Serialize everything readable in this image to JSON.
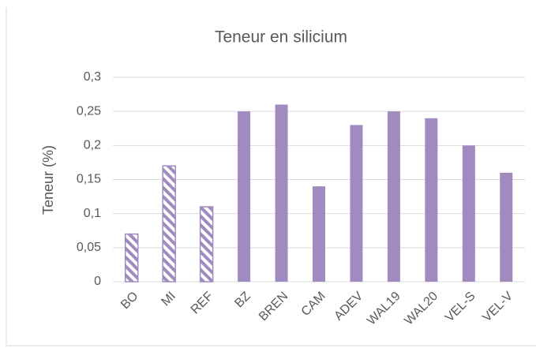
{
  "chart_data": {
    "type": "bar",
    "title": "Teneur en silicium",
    "y_label": "Teneur (%)",
    "categories": [
      "BO",
      "MI",
      "REF",
      "BZ",
      "BREN",
      "CAM",
      "ADEV",
      "WAL19",
      "WAL20",
      "VEL-S",
      "VEL-V"
    ],
    "values": [
      0.07,
      0.17,
      0.11,
      0.25,
      0.26,
      0.14,
      0.23,
      0.25,
      0.24,
      0.2,
      0.16
    ],
    "hatched": [
      true,
      true,
      true,
      false,
      false,
      false,
      false,
      false,
      false,
      false,
      false
    ],
    "color": "#a08abf",
    "ylim": [
      0,
      0.3
    ],
    "yticks": [
      0,
      {
        "value": 0.05,
        "label": "0,05"
      },
      {
        "value": 0.1,
        "label": "0,1"
      },
      {
        "value": 0.15,
        "label": "0,15"
      },
      {
        "value": 0.2,
        "label": "0,2"
      },
      {
        "value": 0.25,
        "label": "0,25"
      },
      {
        "value": 0.3,
        "label": "0,3"
      }
    ],
    "grid": true
  }
}
